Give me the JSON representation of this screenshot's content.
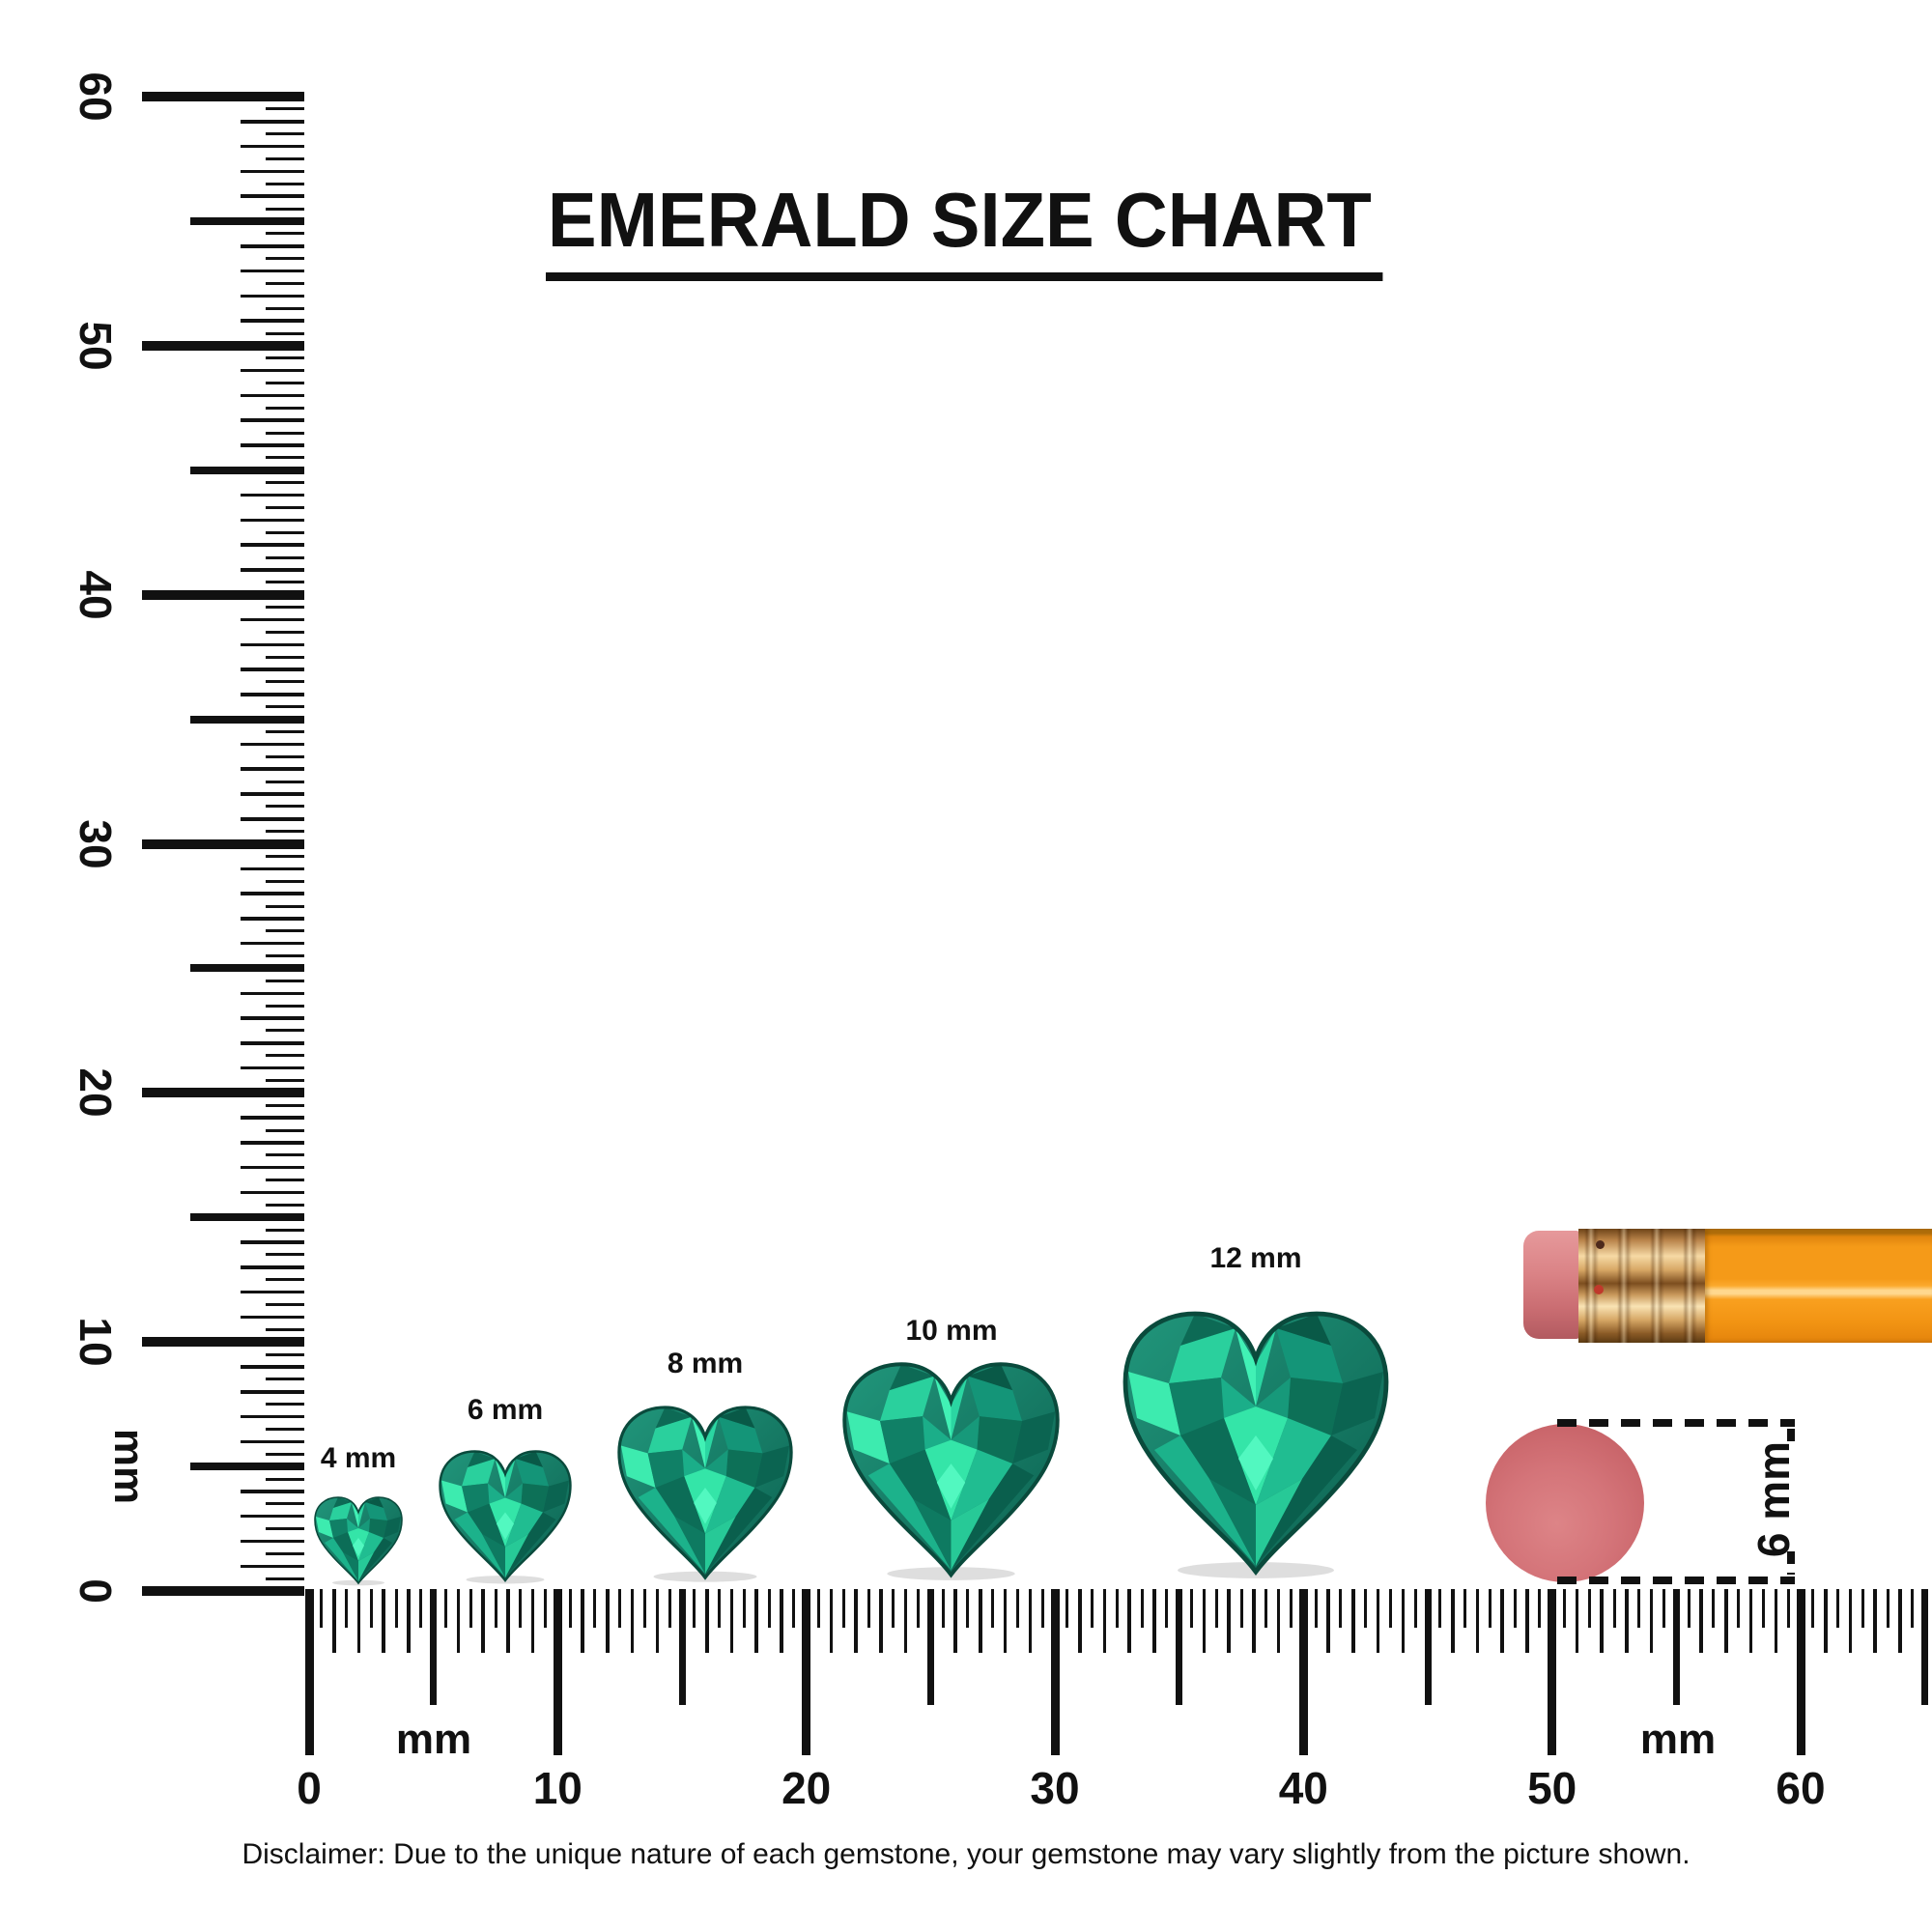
{
  "title": "EMERALD SIZE CHART",
  "disclaimer": "Disclaimer: Due to the unique nature of each gemstone, your gemstone may vary slightly from the picture shown.",
  "vertical_ruler": {
    "unit_label": "mm",
    "min_mm": 0,
    "max_mm": 60,
    "minor_step_mm": 0.5,
    "major_step_mm": 10,
    "major_labels": [
      "0",
      "10",
      "20",
      "30",
      "40",
      "50",
      "60"
    ]
  },
  "horizontal_ruler": {
    "unit_label_left": "mm",
    "unit_label_right": "mm",
    "min_mm": 0,
    "max_mm": 60,
    "minor_step_mm": 0.5,
    "major_step_mm": 10,
    "major_labels": [
      "0",
      "10",
      "20",
      "30",
      "40",
      "50",
      "60"
    ]
  },
  "gems": [
    {
      "label": "4 mm",
      "size_mm": 4
    },
    {
      "label": "6 mm",
      "size_mm": 6
    },
    {
      "label": "8 mm",
      "size_mm": 8
    },
    {
      "label": "10 mm",
      "size_mm": 10
    },
    {
      "label": "12 mm",
      "size_mm": 12
    }
  ],
  "eraser_dimension_label": "6 mm",
  "colors": {
    "ink": "#111111",
    "emerald_bright": "#3debaf",
    "emerald_mid": "#1bae89",
    "emerald_dark": "#0b5b4a",
    "pencil_body": "#f79b18",
    "pencil_ferrule": "#d8a866",
    "pencil_eraser_side": "#d97f83",
    "eraser_top_view": "#d06b70"
  }
}
